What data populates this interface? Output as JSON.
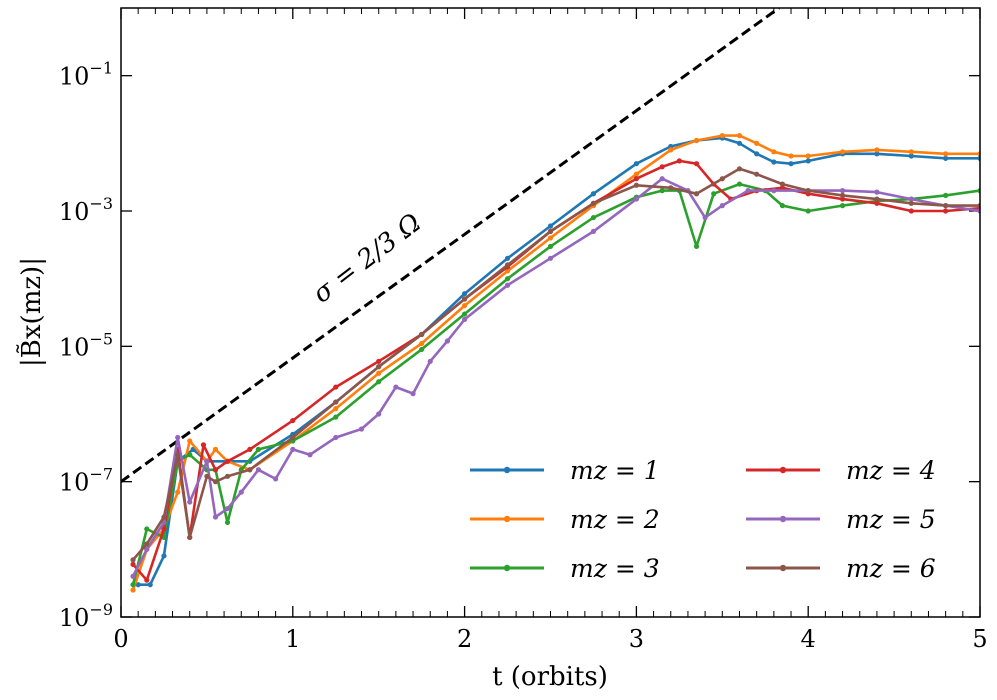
{
  "chart_data": {
    "type": "line",
    "yscale": "log",
    "xlabel": "t (orbits)",
    "ylabel": "|B̃x(mz)|",
    "xlim": [
      0,
      5
    ],
    "ylim": [
      1e-09,
      1
    ],
    "xticks": [
      0,
      1,
      2,
      3,
      4,
      5
    ],
    "xtick_labels": [
      "0",
      "1",
      "2",
      "3",
      "4",
      "5"
    ],
    "yticks": [
      1e-09,
      1e-07,
      1e-05,
      0.001,
      0.1
    ],
    "ytick_labels": [
      "10−9",
      "10−7",
      "10−5",
      "10−3",
      "10−1"
    ],
    "reference_line": {
      "label": "σ = 2/3 Ω",
      "style": "dashed",
      "color": "#000000",
      "x": [
        0,
        3.83
      ],
      "y": [
        1e-07,
        1
      ]
    },
    "legend": {
      "placement": "lower-right",
      "columns": 2
    },
    "series": [
      {
        "name": "mz = 1",
        "color": "#1f77b4",
        "x": [
          0.1,
          0.17,
          0.25,
          0.33,
          0.42,
          0.5,
          0.62,
          0.75,
          1.0,
          1.25,
          1.5,
          1.75,
          2.0,
          2.25,
          2.5,
          2.75,
          3.0,
          3.2,
          3.35,
          3.5,
          3.6,
          3.7,
          3.8,
          3.9,
          4.0,
          4.2,
          4.4,
          4.6,
          4.8,
          5.0
        ],
        "y": [
          3e-09,
          3e-09,
          8e-09,
          2e-07,
          3e-07,
          2e-07,
          2e-07,
          2e-07,
          5e-07,
          1.5e-06,
          5e-06,
          1.5e-05,
          6e-05,
          0.0002,
          0.0006,
          0.0018,
          0.005,
          0.009,
          0.011,
          0.012,
          0.01,
          0.007,
          0.0053,
          0.005,
          0.0055,
          0.007,
          0.007,
          0.0065,
          0.006,
          0.006
        ]
      },
      {
        "name": "mz = 2",
        "color": "#ff7f0e",
        "x": [
          0.07,
          0.15,
          0.25,
          0.33,
          0.4,
          0.5,
          0.55,
          0.62,
          0.75,
          1.0,
          1.25,
          1.5,
          1.75,
          2.0,
          2.25,
          2.5,
          2.75,
          3.0,
          3.2,
          3.35,
          3.5,
          3.6,
          3.7,
          3.8,
          3.9,
          4.0,
          4.2,
          4.4,
          4.6,
          4.8,
          5.0
        ],
        "y": [
          2.5e-09,
          1e-08,
          2e-08,
          7e-08,
          4e-07,
          2e-07,
          3e-07,
          2e-07,
          1.5e-07,
          4e-07,
          1.2e-06,
          4e-06,
          1.1e-05,
          4e-05,
          0.00013,
          0.0004,
          0.0012,
          0.0035,
          0.008,
          0.011,
          0.013,
          0.013,
          0.01,
          0.0075,
          0.0065,
          0.0065,
          0.0075,
          0.008,
          0.0075,
          0.007,
          0.007
        ]
      },
      {
        "name": "mz = 3",
        "color": "#2ca02c",
        "x": [
          0.07,
          0.15,
          0.25,
          0.33,
          0.4,
          0.5,
          0.55,
          0.62,
          0.7,
          0.8,
          1.0,
          1.25,
          1.5,
          1.75,
          2.0,
          2.25,
          2.5,
          2.75,
          3.0,
          3.15,
          3.25,
          3.35,
          3.45,
          3.6,
          3.75,
          3.85,
          4.0,
          4.2,
          4.4,
          4.6,
          4.8,
          5.0
        ],
        "y": [
          3e-09,
          2e-08,
          1.5e-08,
          2e-07,
          2.5e-07,
          1.5e-07,
          1.5e-07,
          2.5e-08,
          1.5e-07,
          3e-07,
          4e-07,
          9e-07,
          3e-06,
          9e-06,
          3e-05,
          0.0001,
          0.0003,
          0.0008,
          0.0016,
          0.002,
          0.002,
          0.0003,
          0.0018,
          0.0025,
          0.002,
          0.0012,
          0.001,
          0.0012,
          0.0014,
          0.0015,
          0.0017,
          0.002
        ]
      },
      {
        "name": "mz = 4",
        "color": "#d62728",
        "x": [
          0.07,
          0.15,
          0.25,
          0.33,
          0.4,
          0.48,
          0.55,
          0.62,
          0.75,
          1.0,
          1.25,
          1.5,
          1.75,
          2.0,
          2.25,
          2.5,
          2.75,
          3.0,
          3.15,
          3.25,
          3.35,
          3.45,
          3.55,
          3.7,
          3.85,
          4.0,
          4.2,
          4.4,
          4.6,
          4.8,
          5.0
        ],
        "y": [
          6e-09,
          3.5e-09,
          2e-08,
          3e-07,
          1.5e-08,
          3.5e-07,
          1.5e-07,
          2e-07,
          3e-07,
          8e-07,
          2.5e-06,
          6e-06,
          1.5e-05,
          5e-05,
          0.00015,
          0.0005,
          0.0013,
          0.003,
          0.0045,
          0.0055,
          0.005,
          0.0025,
          0.0015,
          0.002,
          0.0022,
          0.0018,
          0.0015,
          0.0013,
          0.001,
          0.001,
          0.0011
        ]
      },
      {
        "name": "mz = 5",
        "color": "#9467bd",
        "x": [
          0.07,
          0.15,
          0.25,
          0.33,
          0.4,
          0.5,
          0.55,
          0.62,
          0.7,
          0.8,
          0.9,
          1.0,
          1.1,
          1.25,
          1.4,
          1.5,
          1.6,
          1.7,
          1.8,
          1.9,
          2.0,
          2.25,
          2.5,
          2.75,
          3.0,
          3.15,
          3.3,
          3.4,
          3.5,
          3.65,
          3.8,
          4.0,
          4.2,
          4.4,
          4.6,
          4.8,
          5.0
        ],
        "y": [
          4e-09,
          1e-08,
          2.5e-08,
          4.5e-07,
          5e-08,
          2e-07,
          3e-08,
          4e-08,
          7e-08,
          1.5e-07,
          1.1e-07,
          3e-07,
          2.5e-07,
          4.5e-07,
          6e-07,
          1e-06,
          2.5e-06,
          2e-06,
          6e-06,
          1.2e-05,
          2.5e-05,
          8e-05,
          0.0002,
          0.0005,
          0.0015,
          0.003,
          0.002,
          0.0008,
          0.0012,
          0.002,
          0.002,
          0.002,
          0.002,
          0.0019,
          0.0015,
          0.0012,
          0.001
        ]
      },
      {
        "name": "mz = 6",
        "color": "#8c564b",
        "x": [
          0.07,
          0.15,
          0.25,
          0.33,
          0.4,
          0.5,
          0.55,
          0.62,
          0.75,
          1.0,
          1.25,
          1.5,
          1.75,
          2.0,
          2.25,
          2.5,
          2.75,
          3.0,
          3.2,
          3.35,
          3.5,
          3.6,
          3.7,
          3.85,
          4.0,
          4.2,
          4.4,
          4.6,
          4.8,
          5.0
        ],
        "y": [
          7e-09,
          1.2e-08,
          3e-08,
          2.5e-07,
          1.5e-08,
          1.2e-07,
          1e-07,
          1.2e-07,
          1.5e-07,
          4.5e-07,
          1.5e-06,
          5e-06,
          1.5e-05,
          5e-05,
          0.00016,
          0.0005,
          0.0013,
          0.0024,
          0.0022,
          0.0018,
          0.003,
          0.0042,
          0.0035,
          0.0025,
          0.002,
          0.0017,
          0.0015,
          0.0013,
          0.0012,
          0.0012
        ]
      }
    ]
  }
}
